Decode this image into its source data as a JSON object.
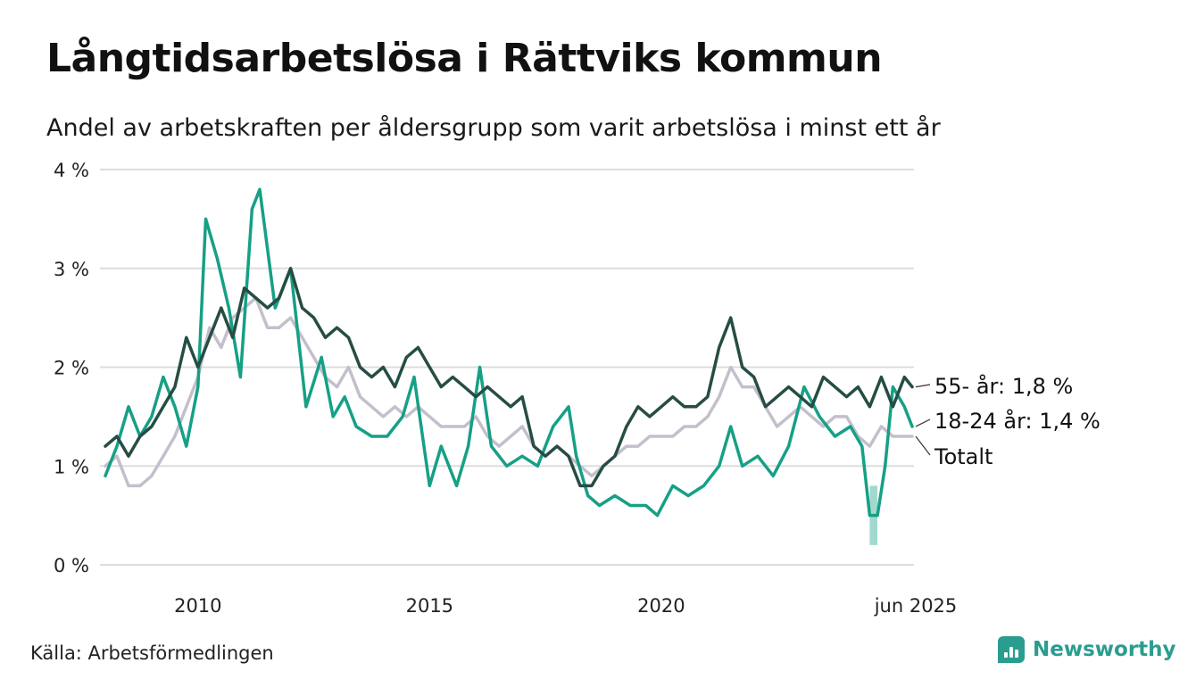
{
  "header": {
    "title": "Långtidsarbetslösa i Rättviks kommun",
    "subtitle": "Andel av arbetskraften per åldersgrupp som varit arbetslösa i minst ett år"
  },
  "footer": {
    "source": "Källa: Arbetsförmedlingen",
    "brand": "Newsworthy",
    "brand_icon": "newsworthy-logo-icon"
  },
  "chart_data": {
    "type": "line",
    "title": "Långtidsarbetslösa i Rättviks kommun",
    "subtitle": "Andel av arbetskraften per åldersgrupp som varit arbetslösa i minst ett år",
    "xlabel": "",
    "ylabel": "",
    "x_range": [
      "2008-01",
      "2025-06"
    ],
    "ylim": [
      0,
      4
    ],
    "y_ticks": [
      {
        "value": 0,
        "label": "0 %"
      },
      {
        "value": 1,
        "label": "1 %"
      },
      {
        "value": 2,
        "label": "2 %"
      },
      {
        "value": 3,
        "label": "3 %"
      },
      {
        "value": 4,
        "label": "4 %"
      }
    ],
    "x_ticks": [
      {
        "value": "2010-01",
        "label": "2010"
      },
      {
        "value": "2015-01",
        "label": "2015"
      },
      {
        "value": "2020-01",
        "label": "2020"
      },
      {
        "value": "2025-06",
        "label": "jun 2025"
      }
    ],
    "grid": true,
    "legend": "end-labels-right",
    "series": [
      {
        "name": "Totalt",
        "end_label": "Totalt",
        "color": "#c4bfcc",
        "points": [
          [
            "2008-01",
            1.0
          ],
          [
            "2008-04",
            1.1
          ],
          [
            "2008-07",
            0.8
          ],
          [
            "2008-10",
            0.8
          ],
          [
            "2009-01",
            0.9
          ],
          [
            "2009-04",
            1.1
          ],
          [
            "2009-07",
            1.3
          ],
          [
            "2009-10",
            1.6
          ],
          [
            "2010-01",
            1.9
          ],
          [
            "2010-04",
            2.4
          ],
          [
            "2010-07",
            2.2
          ],
          [
            "2010-10",
            2.5
          ],
          [
            "2011-01",
            2.6
          ],
          [
            "2011-04",
            2.7
          ],
          [
            "2011-07",
            2.4
          ],
          [
            "2011-10",
            2.4
          ],
          [
            "2012-01",
            2.5
          ],
          [
            "2012-04",
            2.3
          ],
          [
            "2012-07",
            2.1
          ],
          [
            "2012-10",
            1.9
          ],
          [
            "2013-01",
            1.8
          ],
          [
            "2013-04",
            2.0
          ],
          [
            "2013-07",
            1.7
          ],
          [
            "2013-10",
            1.6
          ],
          [
            "2014-01",
            1.5
          ],
          [
            "2014-04",
            1.6
          ],
          [
            "2014-07",
            1.5
          ],
          [
            "2014-10",
            1.6
          ],
          [
            "2015-01",
            1.5
          ],
          [
            "2015-04",
            1.4
          ],
          [
            "2015-07",
            1.4
          ],
          [
            "2015-10",
            1.4
          ],
          [
            "2016-01",
            1.5
          ],
          [
            "2016-04",
            1.3
          ],
          [
            "2016-07",
            1.2
          ],
          [
            "2016-10",
            1.3
          ],
          [
            "2017-01",
            1.4
          ],
          [
            "2017-04",
            1.2
          ],
          [
            "2017-07",
            1.1
          ],
          [
            "2017-10",
            1.2
          ],
          [
            "2018-01",
            1.1
          ],
          [
            "2018-04",
            1.0
          ],
          [
            "2018-07",
            0.9
          ],
          [
            "2018-10",
            1.0
          ],
          [
            "2019-01",
            1.1
          ],
          [
            "2019-04",
            1.2
          ],
          [
            "2019-07",
            1.2
          ],
          [
            "2019-10",
            1.3
          ],
          [
            "2020-01",
            1.3
          ],
          [
            "2020-04",
            1.3
          ],
          [
            "2020-07",
            1.4
          ],
          [
            "2020-10",
            1.4
          ],
          [
            "2021-01",
            1.5
          ],
          [
            "2021-04",
            1.7
          ],
          [
            "2021-07",
            2.0
          ],
          [
            "2021-10",
            1.8
          ],
          [
            "2022-01",
            1.8
          ],
          [
            "2022-04",
            1.6
          ],
          [
            "2022-07",
            1.4
          ],
          [
            "2022-10",
            1.5
          ],
          [
            "2023-01",
            1.6
          ],
          [
            "2023-04",
            1.5
          ],
          [
            "2023-07",
            1.4
          ],
          [
            "2023-10",
            1.5
          ],
          [
            "2024-01",
            1.5
          ],
          [
            "2024-04",
            1.3
          ],
          [
            "2024-07",
            1.2
          ],
          [
            "2024-10",
            1.4
          ],
          [
            "2025-01",
            1.3
          ],
          [
            "2025-04",
            1.3
          ],
          [
            "2025-06",
            1.3
          ]
        ]
      },
      {
        "name": "18-24 år",
        "end_label": "18-24 år: 1,4 %",
        "color": "#16a085",
        "points": [
          [
            "2008-01",
            0.9
          ],
          [
            "2008-04",
            1.2
          ],
          [
            "2008-07",
            1.6
          ],
          [
            "2008-10",
            1.3
          ],
          [
            "2009-01",
            1.5
          ],
          [
            "2009-04",
            1.9
          ],
          [
            "2009-07",
            1.6
          ],
          [
            "2009-10",
            1.2
          ],
          [
            "2010-01",
            1.8
          ],
          [
            "2010-03",
            3.5
          ],
          [
            "2010-06",
            3.1
          ],
          [
            "2010-09",
            2.6
          ],
          [
            "2010-12",
            1.9
          ],
          [
            "2011-03",
            3.6
          ],
          [
            "2011-05",
            3.8
          ],
          [
            "2011-09",
            2.6
          ],
          [
            "2012-01",
            3.0
          ],
          [
            "2012-05",
            1.6
          ],
          [
            "2012-09",
            2.1
          ],
          [
            "2012-12",
            1.5
          ],
          [
            "2013-03",
            1.7
          ],
          [
            "2013-06",
            1.4
          ],
          [
            "2013-10",
            1.3
          ],
          [
            "2014-02",
            1.3
          ],
          [
            "2014-06",
            1.5
          ],
          [
            "2014-09",
            1.9
          ],
          [
            "2015-01",
            0.8
          ],
          [
            "2015-04",
            1.2
          ],
          [
            "2015-08",
            0.8
          ],
          [
            "2015-11",
            1.2
          ],
          [
            "2016-02",
            2.0
          ],
          [
            "2016-05",
            1.2
          ],
          [
            "2016-09",
            1.0
          ],
          [
            "2017-01",
            1.1
          ],
          [
            "2017-05",
            1.0
          ],
          [
            "2017-09",
            1.4
          ],
          [
            "2018-01",
            1.6
          ],
          [
            "2018-03",
            1.1
          ],
          [
            "2018-06",
            0.7
          ],
          [
            "2018-09",
            0.6
          ],
          [
            "2019-01",
            0.7
          ],
          [
            "2019-05",
            0.6
          ],
          [
            "2019-09",
            0.6
          ],
          [
            "2019-12",
            0.5
          ],
          [
            "2020-04",
            0.8
          ],
          [
            "2020-08",
            0.7
          ],
          [
            "2020-12",
            0.8
          ],
          [
            "2021-04",
            1.0
          ],
          [
            "2021-07",
            1.4
          ],
          [
            "2021-10",
            1.0
          ],
          [
            "2022-02",
            1.1
          ],
          [
            "2022-06",
            0.9
          ],
          [
            "2022-10",
            1.2
          ],
          [
            "2023-02",
            1.8
          ],
          [
            "2023-06",
            1.5
          ],
          [
            "2023-10",
            1.3
          ],
          [
            "2024-02",
            1.4
          ],
          [
            "2024-05",
            1.2
          ],
          [
            "2024-07",
            0.5
          ],
          [
            "2024-09",
            0.5
          ],
          [
            "2024-11",
            1.0
          ],
          [
            "2025-01",
            1.8
          ],
          [
            "2025-04",
            1.6
          ],
          [
            "2025-06",
            1.4
          ]
        ],
        "uncertainty_band": {
          "x_from": "2024-07",
          "x_to": "2024-09",
          "low": 0.2,
          "high": 0.8
        }
      },
      {
        "name": "55- år",
        "end_label": "55- år: 1,8 %",
        "color": "#264d44",
        "points": [
          [
            "2008-01",
            1.2
          ],
          [
            "2008-04",
            1.3
          ],
          [
            "2008-07",
            1.1
          ],
          [
            "2008-10",
            1.3
          ],
          [
            "2009-01",
            1.4
          ],
          [
            "2009-04",
            1.6
          ],
          [
            "2009-07",
            1.8
          ],
          [
            "2009-10",
            2.3
          ],
          [
            "2010-01",
            2.0
          ],
          [
            "2010-04",
            2.3
          ],
          [
            "2010-07",
            2.6
          ],
          [
            "2010-10",
            2.3
          ],
          [
            "2011-01",
            2.8
          ],
          [
            "2011-04",
            2.7
          ],
          [
            "2011-07",
            2.6
          ],
          [
            "2011-10",
            2.7
          ],
          [
            "2012-01",
            3.0
          ],
          [
            "2012-04",
            2.6
          ],
          [
            "2012-07",
            2.5
          ],
          [
            "2012-10",
            2.3
          ],
          [
            "2013-01",
            2.4
          ],
          [
            "2013-04",
            2.3
          ],
          [
            "2013-07",
            2.0
          ],
          [
            "2013-10",
            1.9
          ],
          [
            "2014-01",
            2.0
          ],
          [
            "2014-04",
            1.8
          ],
          [
            "2014-07",
            2.1
          ],
          [
            "2014-10",
            2.2
          ],
          [
            "2015-01",
            2.0
          ],
          [
            "2015-04",
            1.8
          ],
          [
            "2015-07",
            1.9
          ],
          [
            "2015-10",
            1.8
          ],
          [
            "2016-01",
            1.7
          ],
          [
            "2016-04",
            1.8
          ],
          [
            "2016-07",
            1.7
          ],
          [
            "2016-10",
            1.6
          ],
          [
            "2017-01",
            1.7
          ],
          [
            "2017-04",
            1.2
          ],
          [
            "2017-07",
            1.1
          ],
          [
            "2017-10",
            1.2
          ],
          [
            "2018-01",
            1.1
          ],
          [
            "2018-04",
            0.8
          ],
          [
            "2018-07",
            0.8
          ],
          [
            "2018-10",
            1.0
          ],
          [
            "2019-01",
            1.1
          ],
          [
            "2019-04",
            1.4
          ],
          [
            "2019-07",
            1.6
          ],
          [
            "2019-10",
            1.5
          ],
          [
            "2020-01",
            1.6
          ],
          [
            "2020-04",
            1.7
          ],
          [
            "2020-07",
            1.6
          ],
          [
            "2020-10",
            1.6
          ],
          [
            "2021-01",
            1.7
          ],
          [
            "2021-04",
            2.2
          ],
          [
            "2021-07",
            2.5
          ],
          [
            "2021-10",
            2.0
          ],
          [
            "2022-01",
            1.9
          ],
          [
            "2022-04",
            1.6
          ],
          [
            "2022-07",
            1.7
          ],
          [
            "2022-10",
            1.8
          ],
          [
            "2023-01",
            1.7
          ],
          [
            "2023-04",
            1.6
          ],
          [
            "2023-07",
            1.9
          ],
          [
            "2023-10",
            1.8
          ],
          [
            "2024-01",
            1.7
          ],
          [
            "2024-04",
            1.8
          ],
          [
            "2024-07",
            1.6
          ],
          [
            "2024-10",
            1.9
          ],
          [
            "2025-01",
            1.6
          ],
          [
            "2025-04",
            1.9
          ],
          [
            "2025-06",
            1.8
          ]
        ]
      }
    ]
  }
}
